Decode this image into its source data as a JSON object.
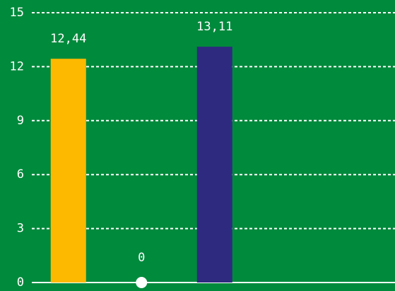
{
  "chart_data": {
    "type": "bar",
    "categories": [
      null,
      null,
      null
    ],
    "values": [
      12.44,
      0,
      13.11
    ],
    "value_labels": [
      "12,44",
      "0",
      "13,11"
    ],
    "colors": [
      "#fdb900",
      "#ffffff",
      "#2e2a80"
    ],
    "ylim": [
      0,
      15
    ],
    "yticks": [
      0,
      3,
      6,
      9,
      12,
      15
    ],
    "grid": true
  }
}
